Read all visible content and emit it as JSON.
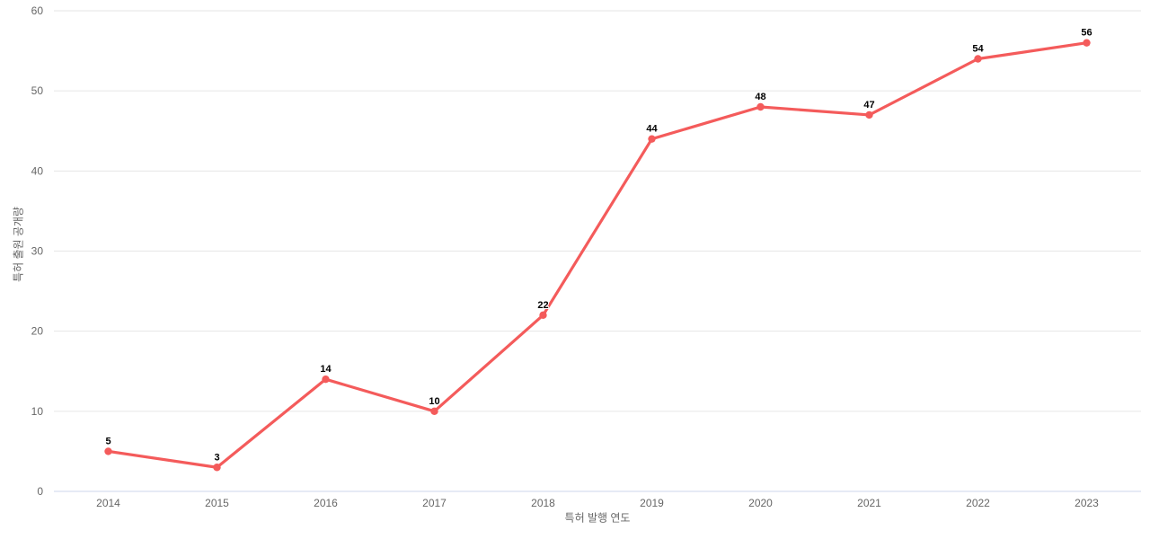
{
  "page": {
    "background": "#ffffff"
  },
  "chart_data": {
    "type": "line",
    "title": "",
    "categories": [
      "2014",
      "2015",
      "2016",
      "2017",
      "2018",
      "2019",
      "2020",
      "2021",
      "2022",
      "2023"
    ],
    "series": [
      {
        "values": [
          5,
          3,
          14,
          10,
          22,
          44,
          48,
          47,
          54,
          56
        ],
        "color": "#f45b5b",
        "marker": "circle",
        "data_labels": true
      }
    ],
    "xlabel": "특허 발행 연도",
    "ylabel": "특허 출원 공개량",
    "ylim": [
      0,
      60
    ],
    "yticks": [
      0,
      10,
      20,
      30,
      40,
      50,
      60
    ],
    "grid": "horizontal",
    "legend": "none",
    "colors": {
      "gridline": "#e6e6e6",
      "axis_line": "#ccd6eb",
      "tick_label": "#666666",
      "axis_title": "#666666",
      "data_label": "#000000",
      "background": "#ffffff"
    }
  }
}
